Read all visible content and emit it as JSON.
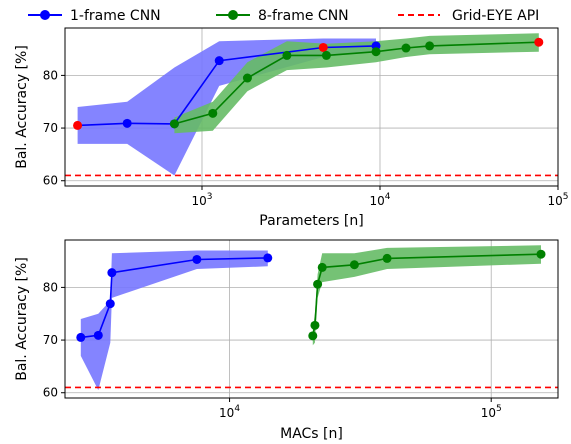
{
  "legend": {
    "items": [
      {
        "label": "1-frame CNN",
        "color": "#0000ff",
        "style": "solid-marker"
      },
      {
        "label": "8-frame CNN",
        "color": "#008000",
        "style": "solid-marker"
      },
      {
        "label": "Grid-EYE API",
        "color": "#ff0000",
        "style": "dashed"
      }
    ]
  },
  "chart_data": [
    {
      "type": "line",
      "xlabel": "Parameters [n]",
      "ylabel": "Bal. Accuracy [%]",
      "xscale": "log",
      "xlim": [
        170,
        100000
      ],
      "ylim": [
        59,
        89
      ],
      "xticks": [
        {
          "value": 1000,
          "label": "10^3"
        },
        {
          "value": 10000,
          "label": "10^4"
        },
        {
          "value": 100000,
          "label": "10^5"
        }
      ],
      "yticks": [
        60,
        70,
        80
      ],
      "grid": true,
      "baseline": {
        "name": "Grid-EYE API",
        "value": 61,
        "color": "#ff0000"
      },
      "series": [
        {
          "name": "1-frame CNN",
          "color": "#0000ff",
          "band_color": "#7777ff",
          "x": [
            200,
            380,
            700,
            1250,
            4800,
            9500
          ],
          "y": [
            70.5,
            70.9,
            70.8,
            82.8,
            85.3,
            85.6
          ],
          "band_upper": [
            74.0,
            75.0,
            81.5,
            86.5,
            87.0,
            87.0
          ],
          "band_lower": [
            67.0,
            67.0,
            61.0,
            78.0,
            83.5,
            84.5
          ],
          "highlight": [
            0,
            4
          ]
        },
        {
          "name": "8-frame CNN",
          "color": "#008000",
          "band_color": "#66bb66",
          "x": [
            700,
            1150,
            1800,
            3000,
            5000,
            9500,
            14000,
            19000,
            78000
          ],
          "y": [
            70.8,
            72.8,
            79.5,
            83.8,
            83.8,
            84.5,
            85.2,
            85.6,
            86.3
          ],
          "band_upper": [
            72.0,
            75.0,
            82.5,
            86.5,
            86.0,
            86.5,
            87.0,
            87.5,
            88.0
          ],
          "band_lower": [
            69.0,
            69.5,
            77.0,
            81.0,
            81.5,
            82.5,
            83.5,
            84.0,
            84.5
          ],
          "highlight": [
            8
          ]
        }
      ]
    },
    {
      "type": "line",
      "xlabel": "MACs [n]",
      "ylabel": "Bal. Accuracy [%]",
      "xscale": "log",
      "xlim": [
        2350,
        180000
      ],
      "ylim": [
        59,
        89
      ],
      "xticks": [
        {
          "value": 10000,
          "label": "10^4"
        },
        {
          "value": 100000,
          "label": "10^5"
        }
      ],
      "yticks": [
        60,
        70,
        80
      ],
      "grid": true,
      "baseline": {
        "name": "Grid-EYE API",
        "value": 61,
        "color": "#ff0000"
      },
      "series": [
        {
          "name": "1-frame CNN",
          "color": "#0000ff",
          "band_color": "#7777ff",
          "x": [
            2700,
            3150,
            3500,
            3550,
            7500,
            14000
          ],
          "y": [
            70.5,
            70.9,
            76.9,
            82.8,
            85.3,
            85.6
          ],
          "band_upper": [
            74.0,
            75.0,
            77.5,
            86.5,
            87.0,
            87.0
          ],
          "band_lower": [
            67.0,
            60.5,
            69.5,
            78.0,
            83.5,
            84.0
          ]
        },
        {
          "name": "8-frame CNN",
          "color": "#008000",
          "band_color": "#66bb66",
          "x": [
            20800,
            21200,
            21700,
            22600,
            30000,
            40000,
            155000
          ],
          "y": [
            70.8,
            72.8,
            80.6,
            83.8,
            84.3,
            85.5,
            86.3
          ],
          "band_upper": [
            72.0,
            75.0,
            82.5,
            86.5,
            86.5,
            87.5,
            88.0
          ],
          "band_lower": [
            69.0,
            69.5,
            78.0,
            81.0,
            82.0,
            83.5,
            84.5
          ]
        }
      ]
    }
  ]
}
